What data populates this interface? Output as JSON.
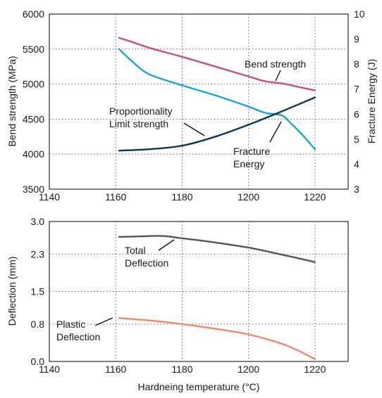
{
  "chart_data": [
    {
      "type": "line",
      "xlabel": "",
      "ylabel": "Bend strength (MPa)",
      "y2label": "Fracture Energy (J)",
      "xlim": [
        1140,
        1230
      ],
      "ylim": [
        3500,
        6000
      ],
      "y2lim": [
        3,
        10
      ],
      "xticks": [
        1140,
        1160,
        1180,
        1200,
        1220
      ],
      "yticks": [
        3500,
        4000,
        4500,
        5000,
        5500,
        6000
      ],
      "y2ticks": [
        3,
        4,
        5,
        6,
        7,
        8,
        9,
        10
      ],
      "grid": "dotted, vertical at 1160/1180/1200/1220 and horizontal at each y tick",
      "colors": {
        "bend_strength": "#c2527a",
        "fracture_energy": "#1ba1e2",
        "proportionality": "#0d3557"
      },
      "series": [
        {
          "name": "Bend strength",
          "axis": "left",
          "color": "#c2527a",
          "x": [
            1161,
            1165,
            1170,
            1180,
            1190,
            1200,
            1205,
            1210,
            1215,
            1220
          ],
          "y": [
            5660,
            5600,
            5520,
            5390,
            5250,
            5110,
            5040,
            5010,
            4960,
            4910
          ]
        },
        {
          "name": "Fracture Energy",
          "axis": "right",
          "color": "#1ba1e2",
          "x": [
            1161,
            1165,
            1170,
            1180,
            1190,
            1200,
            1205,
            1210,
            1213,
            1216,
            1220
          ],
          "y": [
            8.6,
            8.1,
            7.6,
            7.15,
            6.75,
            6.3,
            6.05,
            5.95,
            5.6,
            5.2,
            4.6
          ]
        },
        {
          "name": "Proportionality Limit strength",
          "axis": "left",
          "color": "#0d3557",
          "x": [
            1161,
            1170,
            1180,
            1190,
            1200,
            1210,
            1220
          ],
          "y": [
            4050,
            4070,
            4120,
            4250,
            4420,
            4610,
            4810
          ]
        }
      ],
      "annotations": {
        "bend_strength": "Bend strength",
        "proportionality_line1": "Proportionality",
        "proportionality_line2": "Limit strength",
        "fracture_line1": "Fracture",
        "fracture_line2": "Energy"
      }
    },
    {
      "type": "line",
      "xlabel": "Hardneing temperature (°C)",
      "ylabel": "Deflection (mm)",
      "xlim": [
        1140,
        1230
      ],
      "ylim": [
        0.0,
        3.0
      ],
      "xticks": [
        1140,
        1160,
        1180,
        1200,
        1220
      ],
      "yticks": [
        0.0,
        0.8,
        1.5,
        2.3,
        3.0
      ],
      "ytick_labels": [
        "0.0",
        "0.8",
        "1.5",
        "2.3",
        "3.0"
      ],
      "grid": "dotted, vertical at 1160/1180/1200/1220 and horizontal at each y tick",
      "colors": {
        "total": "#555555",
        "plastic": "#f08a6c"
      },
      "series": [
        {
          "name": "Total Deflection",
          "color": "#555555",
          "x": [
            1161,
            1167,
            1174,
            1180,
            1190,
            1200,
            1210,
            1220
          ],
          "y": [
            2.67,
            2.68,
            2.69,
            2.64,
            2.55,
            2.44,
            2.29,
            2.13
          ]
        },
        {
          "name": "Plastic Deflection",
          "color": "#f08a6c",
          "x": [
            1161,
            1170,
            1180,
            1190,
            1200,
            1210,
            1215,
            1220
          ],
          "y": [
            0.93,
            0.88,
            0.8,
            0.7,
            0.58,
            0.38,
            0.23,
            0.05
          ]
        }
      ],
      "annotations": {
        "total_line1": "Total",
        "total_line2": "Deflection",
        "plastic_line1": "Plastic",
        "plastic_line2": "Deflection"
      }
    }
  ]
}
